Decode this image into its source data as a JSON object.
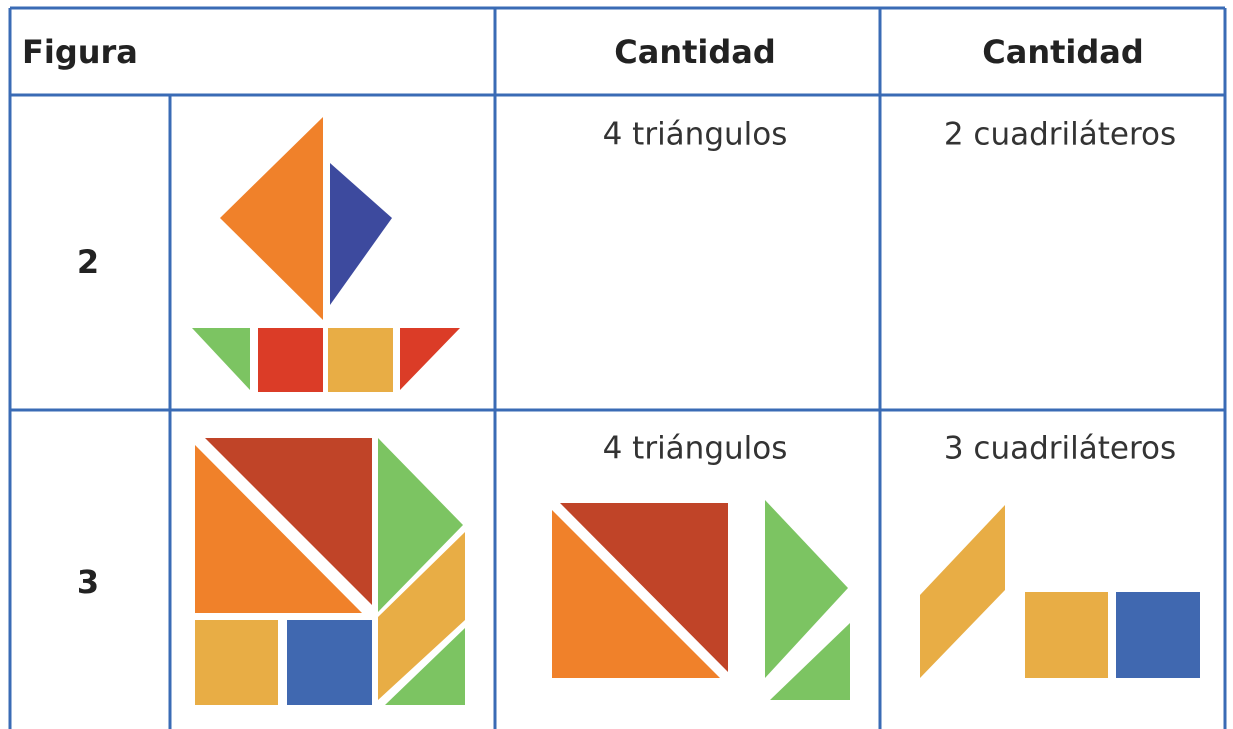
{
  "header": [
    "Figura",
    "Cantidad",
    "Cantidad"
  ],
  "rows": [
    {
      "label": "2",
      "triangles": "4 triángulos",
      "quads": "2 cuadriláteros"
    },
    {
      "label": "3",
      "triangles": "4 triángulos",
      "quads": "3 cuadriláteros"
    }
  ]
}
